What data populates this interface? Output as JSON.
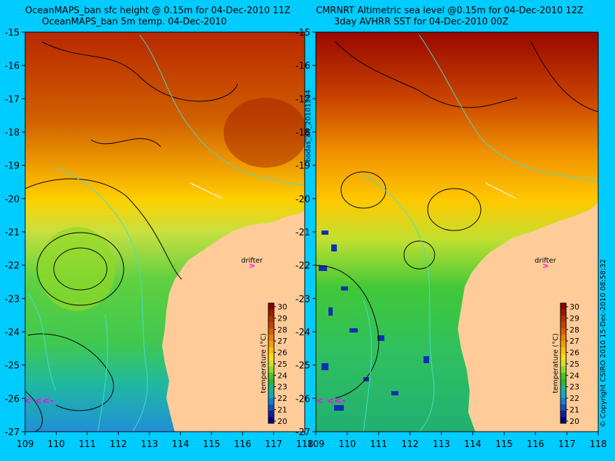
{
  "colors": {
    "background": "#00ccff",
    "land": "#ffcc99",
    "contour": "#000000",
    "coast_isobath": "#40e0d0",
    "drifter_marker": "#ff00ff"
  },
  "left_panel": {
    "title_line1": "OceanMAPS_ban sfc height @ 0.15m for 04-Dec-2010 11Z",
    "title_line2": "OceanMAPS_ban 5m temp. 04-Dec-2010",
    "drifter_label": "drifter"
  },
  "right_panel": {
    "title_line1": "CMRNRT Altimetric sea level  @0.15m  for 04-Dec-2010 12Z",
    "title_line2": "3day AVHRR SST for 04-Dec-2010 00Z",
    "drifter_label": "drifter"
  },
  "axes": {
    "lat_ticks": [
      "-15",
      "-16",
      "-17",
      "-18",
      "-19",
      "-20",
      "-21",
      "-22",
      "-23",
      "-24",
      "-25",
      "-26",
      "-27"
    ],
    "lon_ticks": [
      "109",
      "110",
      "111",
      "112",
      "113",
      "114",
      "115",
      "116",
      "117",
      "118"
    ]
  },
  "colorbar": {
    "label": "temperature (°C)",
    "ticks": [
      "30",
      "29",
      "28",
      "27",
      "26",
      "25",
      "24",
      "23",
      "22",
      "21",
      "20"
    ],
    "colors": [
      "#8b0000",
      "#a01800",
      "#b83000",
      "#c84000",
      "#d86000",
      "#e88000",
      "#f0a000",
      "#ffc000",
      "#ffe000",
      "#d0e030",
      "#90d828",
      "#40c820",
      "#20b840",
      "#10b890",
      "#10a8c8",
      "#1080d8",
      "#1050c8",
      "#1020a0",
      "#000080"
    ]
  },
  "side_text": {
    "run_id": "bodas_an_20101204",
    "copyright": "© Copyright CSIRO 2010   15-Dec-2010 08:58:32"
  }
}
